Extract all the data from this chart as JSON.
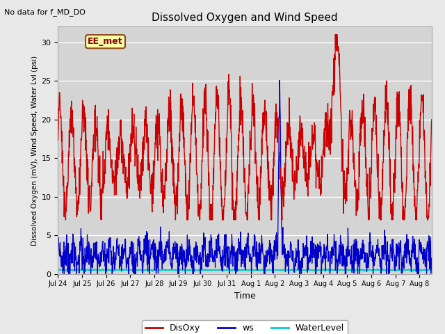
{
  "title": "Dissolved Oxygen and Wind Speed",
  "top_left_text": "No data for f_MD_DO",
  "annotation_box": "EE_met",
  "ylabel": "Dissolved Oxygen (mV), Wind Speed, Water Lvl (psi)",
  "xlabel": "Time",
  "n_days": 15.5,
  "ylim": [
    0,
    32
  ],
  "yticks": [
    0,
    5,
    10,
    15,
    20,
    25,
    30
  ],
  "xtick_labels": [
    "Jul 24",
    "Jul 25",
    "Jul 26",
    "Jul 27",
    "Jul 28",
    "Jul 29",
    "Jul 30",
    "Jul 31",
    "Aug 1",
    "Aug 2",
    "Aug 3",
    "Aug 4",
    "Aug 5",
    "Aug 6",
    "Aug 7",
    "Aug 8"
  ],
  "fig_facecolor": "#e8e8e8",
  "plot_facecolor": "#d4d4d4",
  "disoxy_color": "#cc0000",
  "ws_color": "#0000cc",
  "waterlevel_color": "#00cccc",
  "legend_labels": [
    "DisOxy",
    "ws",
    "WaterLevel"
  ],
  "disoxy_seed": 10,
  "ws_seed": 20,
  "wl_seed": 30
}
